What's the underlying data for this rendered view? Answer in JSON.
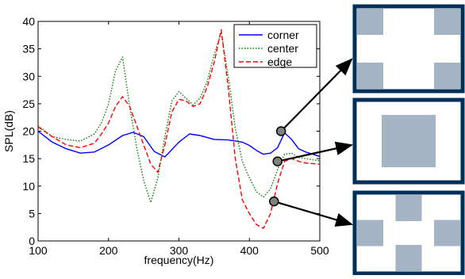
{
  "chart_data": {
    "type": "line",
    "title": "",
    "xlabel": "frequency(Hz)",
    "ylabel": "SPL(dB)",
    "xlim": [
      100,
      500
    ],
    "ylim": [
      0,
      40
    ],
    "xticks": [
      100,
      200,
      300,
      400,
      500
    ],
    "yticks": [
      0,
      5,
      10,
      15,
      20,
      25,
      30,
      35,
      40
    ],
    "grid": false,
    "legend_position": "top-right",
    "series": [
      {
        "name": "corner",
        "color": "#0000ff",
        "style": "solid",
        "x": [
          100,
          120,
          140,
          160,
          180,
          200,
          220,
          235,
          250,
          265,
          280,
          300,
          315,
          330,
          350,
          370,
          390,
          400,
          410,
          420,
          430,
          440,
          450,
          460,
          470,
          480,
          490,
          500
        ],
        "y": [
          20.0,
          18.0,
          16.8,
          16.0,
          16.2,
          17.5,
          19.2,
          19.8,
          19.0,
          16.3,
          15.3,
          18.0,
          19.5,
          19.2,
          18.5,
          18.4,
          18.0,
          17.4,
          16.5,
          15.8,
          16.0,
          17.0,
          19.7,
          18.5,
          16.8,
          16.2,
          15.8,
          15.4
        ]
      },
      {
        "name": "center",
        "color": "#008000",
        "style": "dotted",
        "x": [
          100,
          120,
          140,
          160,
          180,
          190,
          200,
          210,
          220,
          230,
          240,
          250,
          260,
          270,
          280,
          290,
          300,
          310,
          320,
          330,
          340,
          350,
          360,
          370,
          380,
          390,
          400,
          410,
          420,
          430,
          440,
          450,
          460,
          470,
          480,
          490,
          500
        ],
        "y": [
          21.0,
          19.0,
          18.5,
          18.2,
          19.5,
          21.5,
          25.0,
          31.0,
          33.5,
          24.5,
          17.0,
          11.0,
          7.0,
          11.5,
          19.0,
          25.5,
          27.2,
          26.0,
          24.8,
          26.0,
          29.0,
          34.0,
          38.0,
          30.0,
          20.5,
          14.5,
          11.5,
          9.0,
          8.0,
          9.5,
          13.0,
          15.8,
          16.0,
          15.2,
          15.0,
          14.8,
          14.6
        ]
      },
      {
        "name": "edge",
        "color": "#ff0000",
        "style": "dashed",
        "x": [
          100,
          120,
          140,
          160,
          180,
          190,
          200,
          210,
          220,
          230,
          240,
          250,
          260,
          270,
          280,
          290,
          300,
          310,
          320,
          330,
          340,
          350,
          360,
          370,
          380,
          390,
          400,
          410,
          420,
          430,
          440,
          450,
          460,
          470,
          480,
          490,
          500
        ],
        "y": [
          20.8,
          19.0,
          17.5,
          17.0,
          17.8,
          19.5,
          21.5,
          24.5,
          26.3,
          24.5,
          21.0,
          17.5,
          14.0,
          12.5,
          17.5,
          23.5,
          25.8,
          25.5,
          24.5,
          25.0,
          28.0,
          32.5,
          38.5,
          28.0,
          15.0,
          7.5,
          5.0,
          3.0,
          2.3,
          5.0,
          10.5,
          14.5,
          15.0,
          14.5,
          14.2,
          14.1,
          14.0
        ]
      }
    ],
    "annotations": [
      {
        "series": "corner",
        "x": 445,
        "y": 20,
        "pattern": "corner",
        "description_visible": "four gray squares at the corners"
      },
      {
        "series": "edge",
        "x": 440,
        "y": 14.5,
        "pattern": "center",
        "description_visible": "one gray square in the center"
      },
      {
        "series": "center",
        "x": 435,
        "y": 7.2,
        "pattern": "edge",
        "description_visible": "four gray squares at edge midpoints"
      }
    ],
    "panel_colors": {
      "border": "#00305a",
      "patch": "#a4b4c4",
      "marker": "#808080"
    }
  }
}
